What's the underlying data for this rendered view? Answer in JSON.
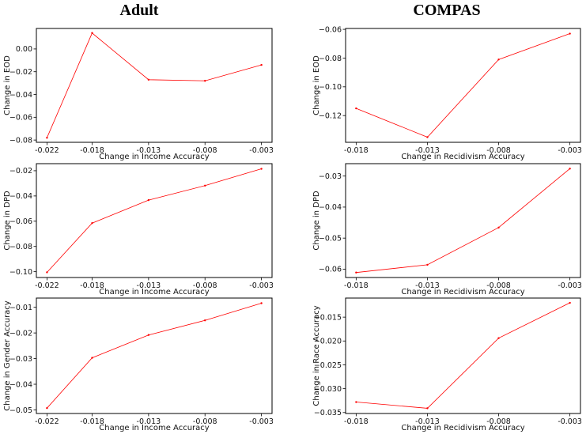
{
  "column_titles": [
    "Adult",
    "COMPAS"
  ],
  "line_color": "#ff0000",
  "chart_data": [
    {
      "type": "line",
      "panel": "adult-eod",
      "x": [
        -0.022,
        -0.018,
        -0.013,
        -0.008,
        -0.003
      ],
      "x_tick_labels": [
        "-0.022",
        "-0.018",
        "-0.013",
        "-0.008",
        "-0.003"
      ],
      "values": [
        -0.078,
        0.014,
        -0.027,
        -0.028,
        -0.014
      ],
      "xlabel": "Change in Income Accuracy",
      "ylabel": "Change in EOD",
      "yticks": [
        0.0,
        -0.02,
        -0.04,
        -0.06,
        -0.08
      ],
      "ytick_labels": [
        "0.00",
        "−0.02",
        "−0.04",
        "−0.06",
        "−0.08"
      ],
      "ylim": [
        -0.082,
        0.018
      ]
    },
    {
      "type": "line",
      "panel": "compas-eod",
      "x": [
        -0.018,
        -0.013,
        -0.008,
        -0.003
      ],
      "x_tick_labels": [
        "-0.018",
        "-0.013",
        "-0.008",
        "-0.003"
      ],
      "values": [
        -0.115,
        -0.135,
        -0.081,
        -0.063
      ],
      "xlabel": "Change in Recidivism Accuracy",
      "ylabel": "Change in EOD",
      "yticks": [
        -0.06,
        -0.08,
        -0.1,
        -0.12
      ],
      "ytick_labels": [
        "−0.06",
        "−0.08",
        "−0.10",
        "−0.12"
      ],
      "ylim": [
        -0.1386,
        -0.0594
      ]
    },
    {
      "type": "line",
      "panel": "adult-dpd",
      "x": [
        -0.022,
        -0.018,
        -0.013,
        -0.008,
        -0.003
      ],
      "x_tick_labels": [
        "-0.022",
        "-0.018",
        "-0.013",
        "-0.008",
        "-0.003"
      ],
      "values": [
        -0.1005,
        -0.0615,
        -0.0433,
        -0.0318,
        -0.0185
      ],
      "xlabel": "Change in Income Accuracy",
      "ylabel": "Change in DPD",
      "yticks": [
        -0.02,
        -0.04,
        -0.06,
        -0.08,
        -0.1
      ],
      "ytick_labels": [
        "−0.02",
        "−0.04",
        "−0.06",
        "−0.08",
        "−0.10"
      ],
      "ylim": [
        -0.1046,
        -0.0144
      ]
    },
    {
      "type": "line",
      "panel": "compas-dpd",
      "x": [
        -0.018,
        -0.013,
        -0.008,
        -0.003
      ],
      "x_tick_labels": [
        "-0.018",
        "-0.013",
        "-0.008",
        "-0.003"
      ],
      "values": [
        -0.0611,
        -0.0586,
        -0.0466,
        -0.0276
      ],
      "xlabel": "Change in Recidivism Accuracy",
      "ylabel": "Change in DPD",
      "yticks": [
        -0.03,
        -0.04,
        -0.05,
        -0.06
      ],
      "ytick_labels": [
        "−0.03",
        "−0.04",
        "−0.05",
        "−0.06"
      ],
      "ylim": [
        -0.0627,
        -0.026
      ]
    },
    {
      "type": "line",
      "panel": "adult-gender",
      "x": [
        -0.022,
        -0.018,
        -0.013,
        -0.008,
        -0.003
      ],
      "x_tick_labels": [
        "-0.022",
        "-0.018",
        "-0.013",
        "-0.008",
        "-0.003"
      ],
      "values": [
        -0.0493,
        -0.0297,
        -0.0208,
        -0.0151,
        -0.0084
      ],
      "xlabel": "Change in Income Accuracy",
      "ylabel": "Change in Gender Accuracy",
      "yticks": [
        -0.01,
        -0.02,
        -0.03,
        -0.04,
        -0.05
      ],
      "ytick_labels": [
        "−0.01",
        "−0.02",
        "−0.03",
        "−0.04",
        "−0.05"
      ],
      "ylim": [
        -0.0514,
        -0.0064
      ]
    },
    {
      "type": "line",
      "panel": "compas-race",
      "x": [
        -0.018,
        -0.013,
        -0.008,
        -0.003
      ],
      "x_tick_labels": [
        "-0.018",
        "-0.013",
        "-0.008",
        "-0.003"
      ],
      "values": [
        -0.0328,
        -0.0341,
        -0.0194,
        -0.012
      ],
      "xlabel": "Change in Recidivism Accuracy",
      "ylabel": "Change in Race Accuracy",
      "yticks": [
        -0.015,
        -0.02,
        -0.025,
        -0.03,
        -0.035
      ],
      "ytick_labels": [
        "−0.015",
        "−0.020",
        "−0.025",
        "−0.030",
        "−0.035"
      ],
      "ylim": [
        -0.0352,
        -0.011
      ]
    }
  ]
}
